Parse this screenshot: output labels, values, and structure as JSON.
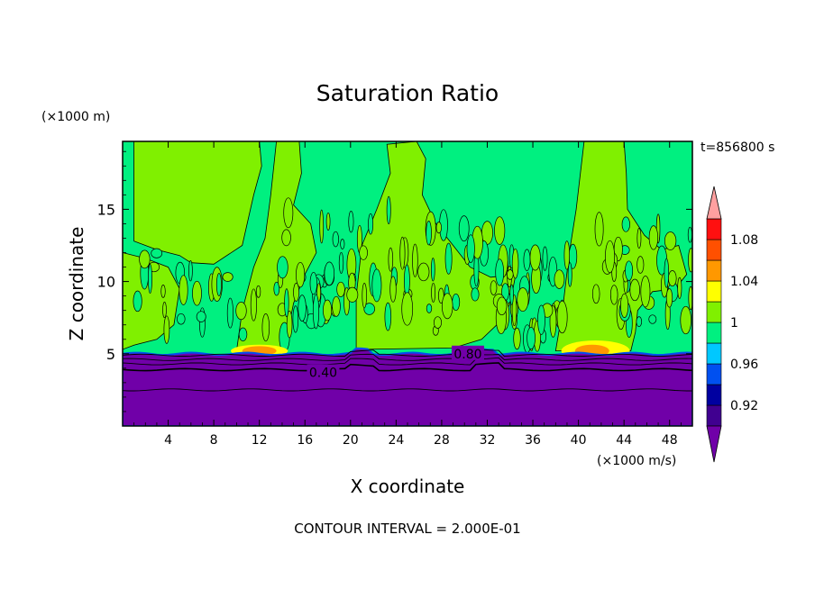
{
  "chart_data": {
    "type": "heatmap",
    "title": "Saturation Ratio",
    "xlabel": "X coordinate",
    "ylabel": "Z coordinate",
    "x_unit": "(×1000 m/s)",
    "y_unit": "(×1000 m)",
    "time_label": "t=856800 s",
    "footer": "CONTOUR INTERVAL = 2.000E-01",
    "xlim": [
      0,
      50
    ],
    "ylim": [
      0,
      19.7
    ],
    "x_ticks": [
      4,
      8,
      12,
      16,
      20,
      24,
      28,
      32,
      36,
      40,
      44,
      48
    ],
    "y_ticks": [
      5,
      10,
      15
    ],
    "contour_labels": [
      {
        "text": "0.80",
        "x": 30.3,
        "y": 5.0
      },
      {
        "text": "0.40",
        "x": 17.6,
        "y": 3.7
      }
    ],
    "colorbar": {
      "levels": [
        0.9,
        0.92,
        0.94,
        0.96,
        0.98,
        1.0,
        1.02,
        1.04,
        1.06,
        1.08,
        1.1
      ],
      "tick_labels": [
        "0.92",
        "0.96",
        "1",
        "1.04",
        "1.08"
      ],
      "tick_values": [
        0.92,
        0.96,
        1.0,
        1.04,
        1.08
      ],
      "colors": [
        "#400090",
        "#0000a0",
        "#0050f0",
        "#00c8ff",
        "#00f080",
        "#80f000",
        "#ffff00",
        "#ff9800",
        "#ff5000",
        "#ff1010"
      ],
      "under_color": "#7000a8",
      "over_color": "#ffa0a0"
    },
    "regions": {
      "lower_layer_top": 5.0,
      "lower_layer_value": "<0.90",
      "background_value": "0.98-1.00",
      "plume_value": "1.00-1.02",
      "plume_centers_x": [
        4,
        22,
        42
      ]
    }
  }
}
